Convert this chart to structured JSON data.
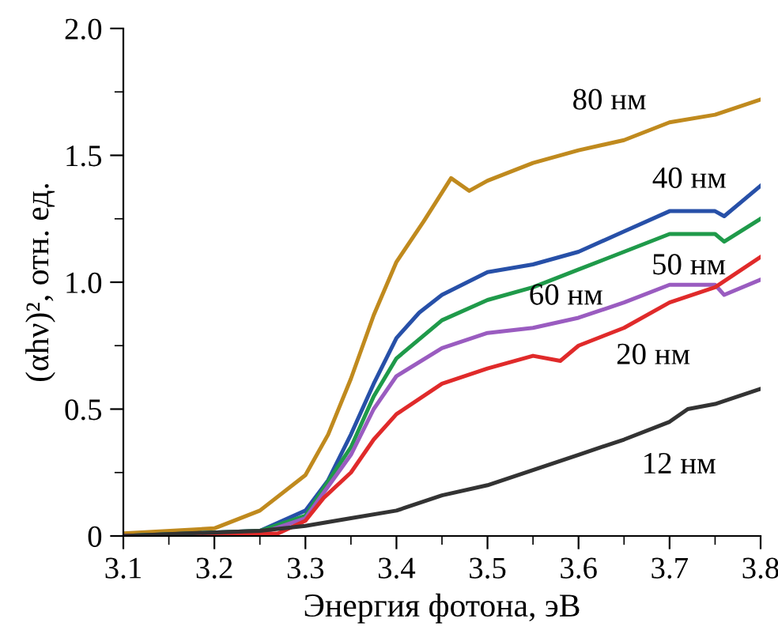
{
  "chart_data": {
    "type": "line",
    "xlabel": "Энергия фотона, эВ",
    "ylabel": "(αhν)², отн. ед.",
    "xlim": [
      3.1,
      3.8
    ],
    "ylim": [
      0,
      2.0
    ],
    "xticks": [
      3.1,
      3.2,
      3.3,
      3.4,
      3.5,
      3.6,
      3.7,
      3.8
    ],
    "yticks": [
      0,
      0.5,
      {
        "value": 1,
        "label": "1.0"
      },
      1.5,
      {
        "value": 2,
        "label": "2.0"
      }
    ],
    "grid": false,
    "legend": false,
    "marker": "none",
    "line_style": "solid",
    "series": [
      {
        "color": "#c08a1e",
        "x": [
          3.1,
          3.2,
          3.25,
          3.3,
          3.325,
          3.35,
          3.375,
          3.4,
          3.43,
          3.46,
          3.48,
          3.5,
          3.55,
          3.6,
          3.65,
          3.7,
          3.75,
          3.8
        ],
        "values": [
          0.01,
          0.03,
          0.1,
          0.24,
          0.4,
          0.62,
          0.87,
          1.08,
          1.24,
          1.41,
          1.36,
          1.4,
          1.47,
          1.52,
          1.56,
          1.63,
          1.66,
          1.72
        ]
      },
      {
        "color": "#2750a8",
        "x": [
          3.1,
          3.25,
          3.3,
          3.325,
          3.35,
          3.375,
          3.4,
          3.425,
          3.45,
          3.5,
          3.55,
          3.6,
          3.65,
          3.7,
          3.75,
          3.76,
          3.8
        ],
        "values": [
          0.0,
          0.02,
          0.1,
          0.22,
          0.4,
          0.6,
          0.78,
          0.88,
          0.95,
          1.04,
          1.07,
          1.12,
          1.2,
          1.28,
          1.28,
          1.26,
          1.38
        ]
      },
      {
        "color": "#1f9a4a",
        "x": [
          3.1,
          3.25,
          3.3,
          3.35,
          3.375,
          3.4,
          3.45,
          3.5,
          3.55,
          3.6,
          3.65,
          3.7,
          3.75,
          3.76,
          3.8
        ],
        "values": [
          0.0,
          0.02,
          0.08,
          0.35,
          0.55,
          0.7,
          0.85,
          0.93,
          0.98,
          1.05,
          1.12,
          1.19,
          1.19,
          1.16,
          1.25
        ]
      },
      {
        "color": "#9a5cc0",
        "x": [
          3.1,
          3.25,
          3.3,
          3.35,
          3.375,
          3.4,
          3.45,
          3.5,
          3.55,
          3.6,
          3.65,
          3.7,
          3.75,
          3.76,
          3.8
        ],
        "values": [
          0.0,
          0.01,
          0.07,
          0.32,
          0.5,
          0.63,
          0.74,
          0.8,
          0.82,
          0.86,
          0.92,
          0.99,
          0.99,
          0.95,
          1.01
        ]
      },
      {
        "color": "#e02a2a",
        "x": [
          3.1,
          3.27,
          3.3,
          3.32,
          3.35,
          3.375,
          3.4,
          3.45,
          3.5,
          3.55,
          3.58,
          3.6,
          3.65,
          3.7,
          3.75,
          3.8
        ],
        "values": [
          0.0,
          0.01,
          0.06,
          0.15,
          0.25,
          0.38,
          0.48,
          0.6,
          0.66,
          0.71,
          0.69,
          0.75,
          0.82,
          0.92,
          0.98,
          1.1
        ]
      },
      {
        "color": "#333333",
        "x": [
          3.1,
          3.17,
          3.25,
          3.3,
          3.35,
          3.4,
          3.45,
          3.5,
          3.55,
          3.6,
          3.65,
          3.7,
          3.72,
          3.75,
          3.8
        ],
        "values": [
          0.0,
          0.01,
          0.02,
          0.04,
          0.07,
          0.1,
          0.16,
          0.2,
          0.26,
          0.32,
          0.38,
          0.45,
          0.5,
          0.52,
          0.58
        ]
      }
    ],
    "annotations": [
      {
        "text": "80 нм",
        "x": 3.6,
        "y": 1.52
      },
      {
        "text": "40 нм",
        "x": 3.7,
        "y": 1.28
      },
      {
        "text": "50 нм",
        "x": 3.75,
        "y": 1.19
      },
      {
        "text": "60 нм",
        "x": 3.55,
        "y": 0.82
      },
      {
        "text": "20 нм",
        "x": 3.6,
        "y": 0.75
      },
      {
        "text": "12 нм",
        "x": 3.65,
        "y": 0.38
      }
    ]
  }
}
